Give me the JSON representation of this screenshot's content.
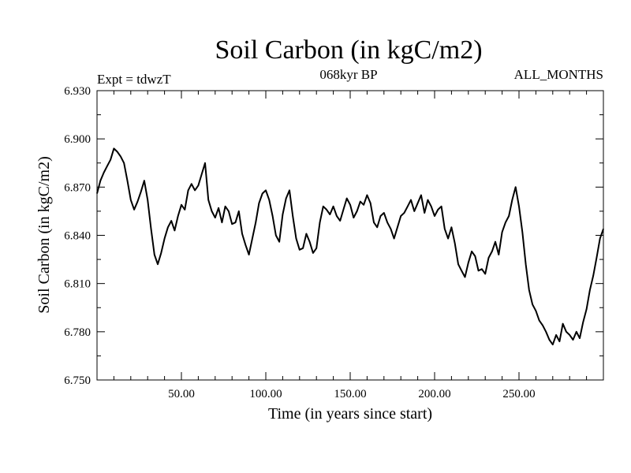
{
  "chart_data": {
    "type": "line",
    "title": "Soil Carbon (in kgC/m2)",
    "subtitle": "068kyr BP",
    "header_left": "Expt = tdwzT",
    "header_right": "ALL_MONTHS",
    "xlabel": "Time (in years since start)",
    "ylabel": "Soil Carbon (in kgC/m2)",
    "xlim": [
      0,
      300
    ],
    "ylim": [
      6.75,
      6.93
    ],
    "xticks": [
      50,
      100,
      150,
      200,
      250
    ],
    "xtick_labels": [
      "50.00",
      "100.00",
      "150.00",
      "200.00",
      "250.00"
    ],
    "yticks": [
      6.75,
      6.78,
      6.81,
      6.84,
      6.87,
      6.9,
      6.93
    ],
    "ytick_labels": [
      "6.750",
      "6.780",
      "6.810",
      "6.840",
      "6.870",
      "6.900",
      "6.930"
    ],
    "grid": false,
    "line_color": "#000000",
    "series": [
      {
        "x": [
          0,
          2,
          4,
          6,
          8,
          10,
          12,
          14,
          16,
          18,
          20,
          22,
          24,
          26,
          28,
          30,
          32,
          34,
          36,
          38,
          40,
          42,
          44,
          46,
          48,
          50,
          52,
          54,
          56,
          58,
          60,
          62,
          64,
          66,
          68,
          70,
          72,
          74,
          76,
          78,
          80,
          82,
          84,
          86,
          88,
          90,
          92,
          94,
          96,
          98,
          100,
          102,
          104,
          106,
          108,
          110,
          112,
          114,
          116,
          118,
          120,
          122,
          124,
          126,
          128,
          130,
          132,
          134,
          136,
          138,
          140,
          142,
          144,
          146,
          148,
          150,
          152,
          154,
          156,
          158,
          160,
          162,
          164,
          166,
          168,
          170,
          172,
          174,
          176,
          178,
          180,
          182,
          184,
          186,
          188,
          190,
          192,
          194,
          196,
          198,
          200,
          202,
          204,
          206,
          208,
          210,
          212,
          214,
          216,
          218,
          220,
          222,
          224,
          226,
          228,
          230,
          232,
          234,
          236,
          238,
          240,
          242,
          244,
          246,
          248,
          250,
          252,
          254,
          256,
          258,
          260,
          262,
          264,
          266,
          268,
          270,
          272,
          274,
          276,
          278,
          280,
          282,
          284,
          286,
          288,
          290,
          292,
          294,
          296,
          298,
          300
        ],
        "values": [
          6.866,
          6.874,
          6.879,
          6.883,
          6.887,
          6.894,
          6.892,
          6.889,
          6.885,
          6.874,
          6.862,
          6.856,
          6.861,
          6.867,
          6.874,
          6.862,
          6.844,
          6.828,
          6.822,
          6.829,
          6.838,
          6.845,
          6.849,
          6.843,
          6.852,
          6.859,
          6.856,
          6.868,
          6.872,
          6.868,
          6.871,
          6.878,
          6.885,
          6.862,
          6.855,
          6.851,
          6.857,
          6.848,
          6.858,
          6.855,
          6.847,
          6.848,
          6.855,
          6.841,
          6.834,
          6.828,
          6.838,
          6.848,
          6.86,
          6.866,
          6.868,
          6.862,
          6.852,
          6.84,
          6.836,
          6.853,
          6.863,
          6.868,
          6.852,
          6.838,
          6.831,
          6.832,
          6.841,
          6.836,
          6.829,
          6.832,
          6.848,
          6.858,
          6.856,
          6.853,
          6.858,
          6.852,
          6.849,
          6.856,
          6.863,
          6.859,
          6.851,
          6.855,
          6.861,
          6.859,
          6.865,
          6.86,
          6.848,
          6.845,
          6.852,
          6.854,
          6.848,
          6.844,
          6.838,
          6.845,
          6.852,
          6.854,
          6.858,
          6.862,
          6.855,
          6.86,
          6.865,
          6.854,
          6.862,
          6.858,
          6.852,
          6.856,
          6.858,
          6.844,
          6.838,
          6.845,
          6.835,
          6.822,
          6.818,
          6.814,
          6.823,
          6.83,
          6.827,
          6.818,
          6.819,
          6.816,
          6.826,
          6.83,
          6.836,
          6.828,
          6.842,
          6.848,
          6.852,
          6.862,
          6.87,
          6.858,
          6.842,
          6.822,
          6.806,
          6.797,
          6.793,
          6.787,
          6.784,
          6.78,
          6.775,
          6.772,
          6.778,
          6.774,
          6.785,
          6.78,
          6.778,
          6.775,
          6.78,
          6.776,
          6.786,
          6.794,
          6.806,
          6.815,
          6.826,
          6.838,
          6.844
        ]
      }
    ]
  }
}
